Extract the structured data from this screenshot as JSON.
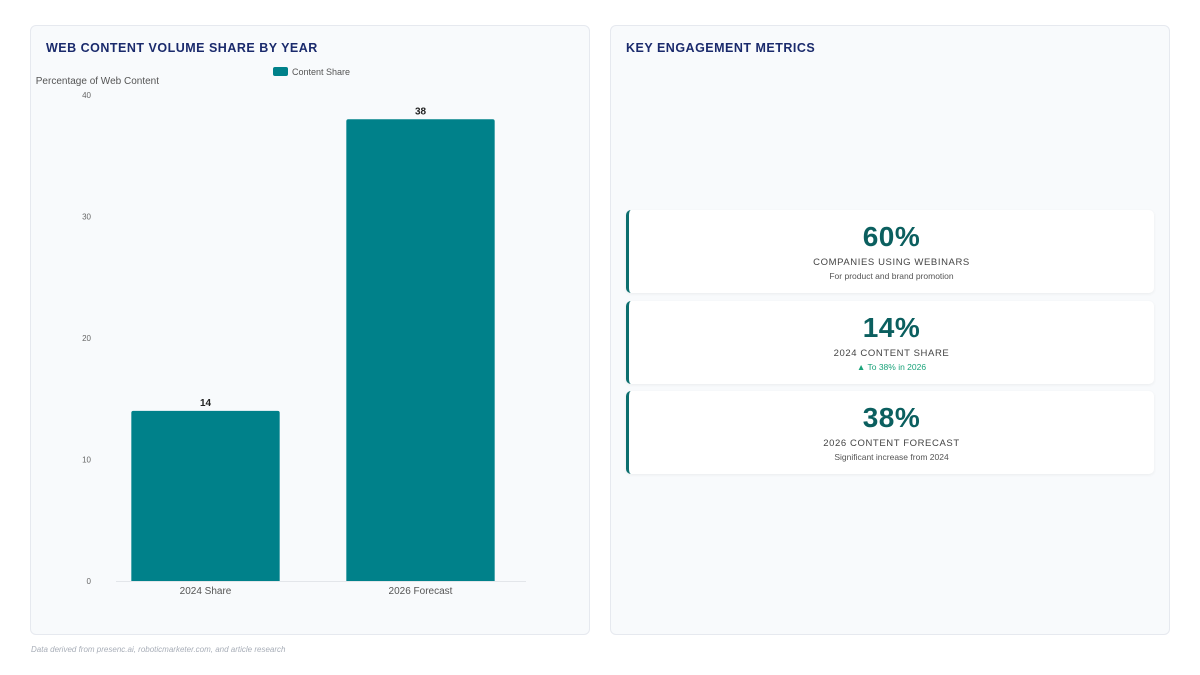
{
  "chart_panel": {
    "title": "WEB CONTENT VOLUME SHARE BY YEAR"
  },
  "metrics_panel": {
    "title": "KEY ENGAGEMENT METRICS",
    "cards": [
      {
        "value": "60%",
        "label": "COMPANIES USING WEBINARS",
        "sub": "For product and brand promotion",
        "sub_type": "note"
      },
      {
        "value": "14%",
        "label": "2024 CONTENT SHARE",
        "sub": "▲  To 38% in 2026",
        "sub_type": "trend"
      },
      {
        "value": "38%",
        "label": "2026 CONTENT FORECAST",
        "sub": "Significant increase from 2024",
        "sub_type": "note"
      }
    ]
  },
  "footnote": "Data derived from presenc.ai, roboticmarketer.com, and article research",
  "colors": {
    "bar": "#00818a",
    "accent": "#0b5f5f",
    "trend": "#1aa37a",
    "title": "#1a2a6c"
  },
  "chart_data": {
    "type": "bar",
    "categories": [
      "2024 Share",
      "2026 Forecast"
    ],
    "series": [
      {
        "name": "Content Share",
        "values": [
          14,
          38
        ]
      }
    ],
    "ylabel": "Percentage of Web Content",
    "ylim": [
      0,
      40
    ],
    "yticks": [
      0,
      10,
      20,
      30,
      40
    ],
    "data_labels": true,
    "legend": "top-center",
    "grid": false
  }
}
